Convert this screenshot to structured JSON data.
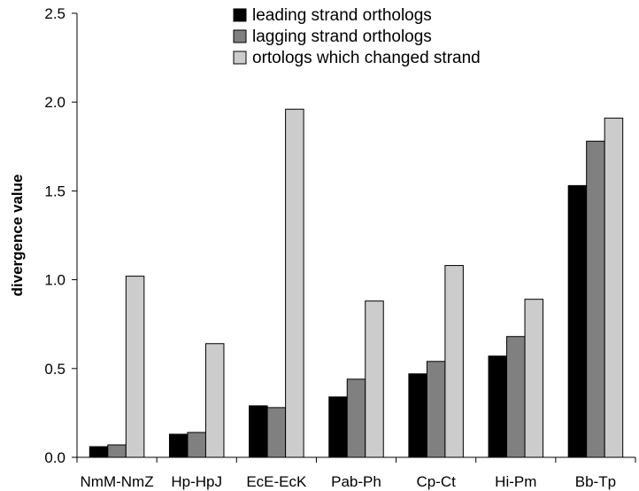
{
  "chart_data": {
    "type": "bar",
    "ylabel": "divergence value",
    "ylim": [
      0,
      2.5
    ],
    "yticks": [
      "0.0",
      "0.5",
      "1.0",
      "1.5",
      "2.0",
      "2.5"
    ],
    "categories": [
      "NmM-NmZ",
      "Hp-HpJ",
      "EcE-EcK",
      "Pab-Ph",
      "Cp-Ct",
      "Hi-Pm",
      "Bb-Tp"
    ],
    "series": [
      {
        "name": "leading strand orthologs",
        "color": "#000000",
        "values": [
          0.06,
          0.13,
          0.29,
          0.34,
          0.47,
          0.57,
          1.53
        ]
      },
      {
        "name": "lagging strand orthologs",
        "color": "#808080",
        "values": [
          0.07,
          0.14,
          0.28,
          0.44,
          0.54,
          0.68,
          1.78
        ]
      },
      {
        "name": "ortologs which changed strand",
        "color": "#cccccc",
        "values": [
          1.02,
          0.64,
          1.96,
          0.88,
          1.08,
          0.89,
          1.91
        ]
      }
    ],
    "legend_position": "top"
  }
}
